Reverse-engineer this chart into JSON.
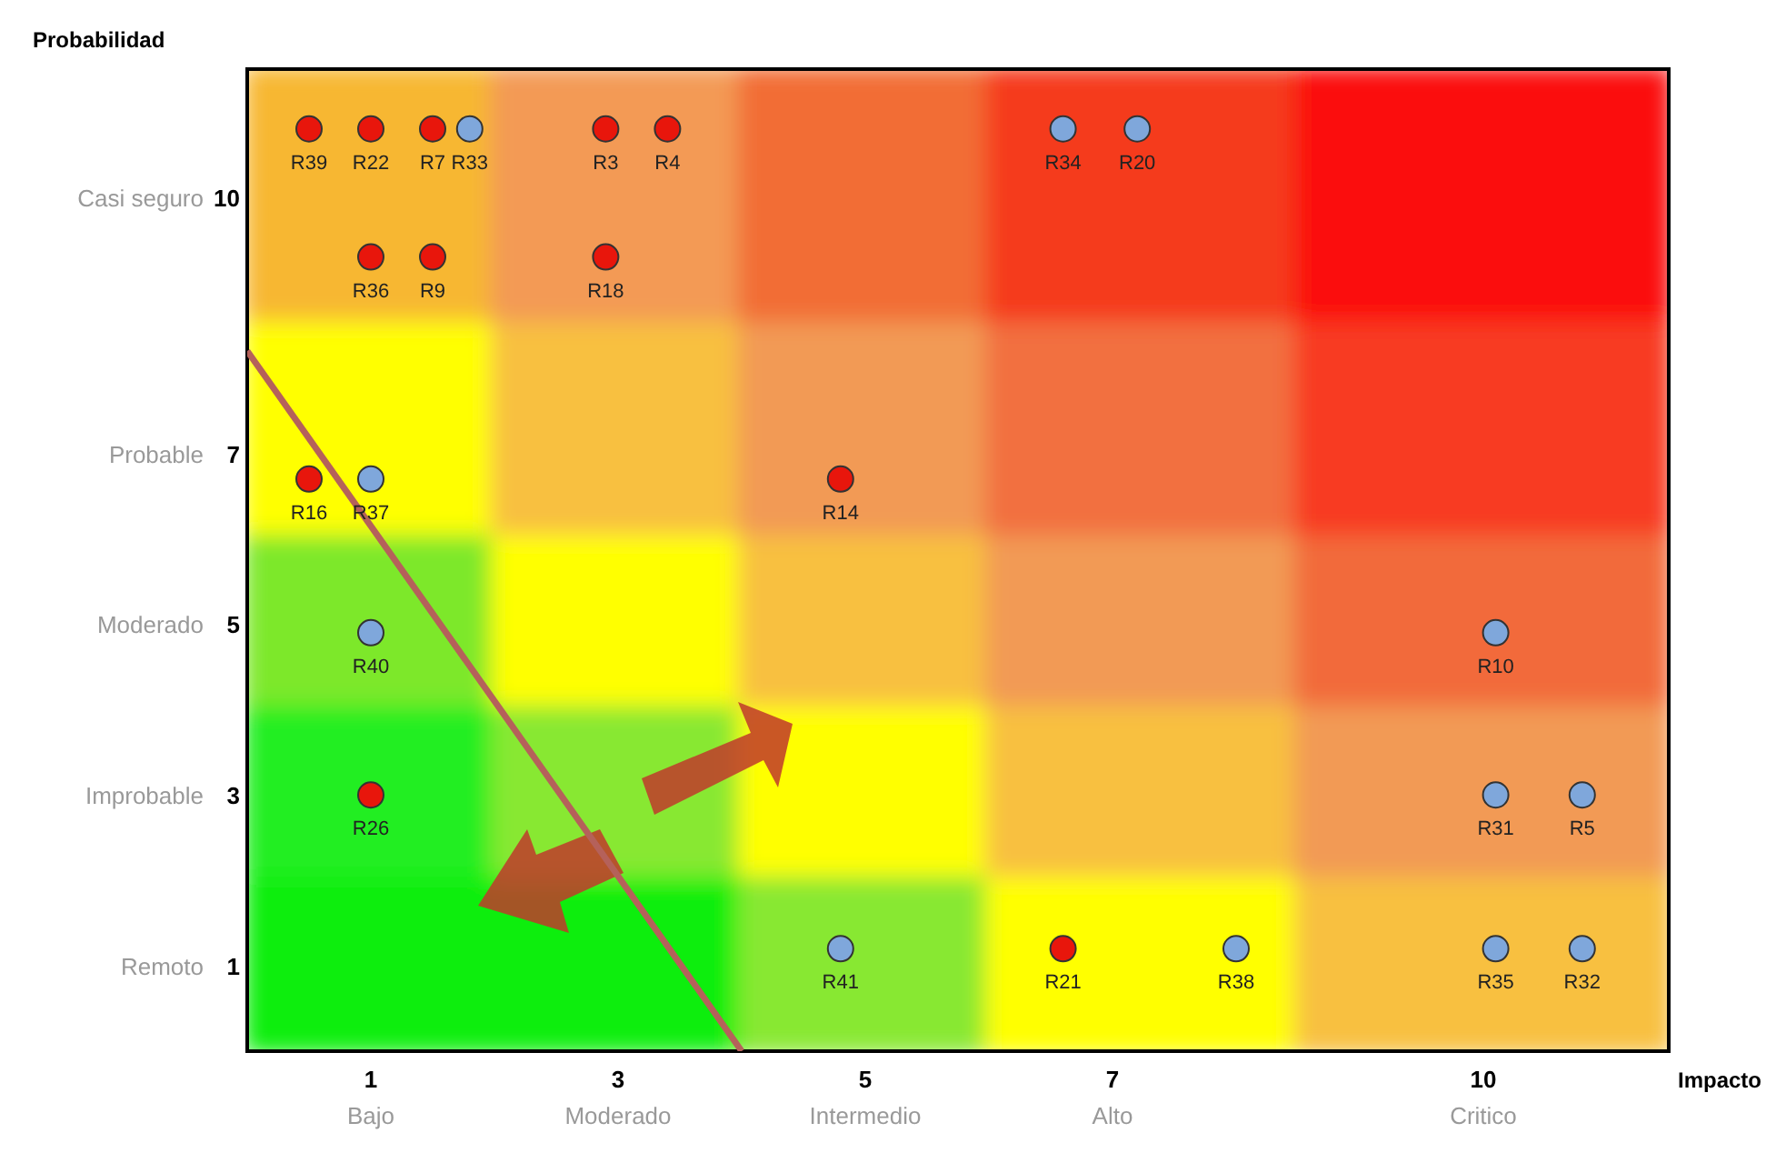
{
  "chart_data": {
    "type": "scatter",
    "xlabel": "Impacto",
    "ylabel": "Probabilidad",
    "xlim": [
      0,
      11.5
    ],
    "ylim": [
      0,
      11.5
    ],
    "xticks": [
      1,
      3,
      5,
      7,
      10
    ],
    "yticks": [
      1,
      3,
      5,
      7,
      10
    ],
    "annotations": [
      "Bajo",
      "Moderado",
      "Intermedio",
      "Alto",
      "Critico",
      "Remoto",
      "Improbable",
      "Moderado",
      "Probable",
      "Casi seguro"
    ],
    "grid": false,
    "series": [
      {
        "marker": "circle",
        "color": "#e8160c",
        "x": [
          0.5,
          1.0,
          1.5,
          2.9,
          3.4,
          1.0,
          1.5,
          2.9,
          0.5,
          4.8,
          1.0,
          6.6
        ],
        "values": [
          10.8,
          10.8,
          10.8,
          10.8,
          10.8,
          9.3,
          9.3,
          9.3,
          6.7,
          6.7,
          3.0,
          1.2
        ],
        "value_labels": [
          "R39",
          "R22",
          "R7",
          "R3",
          "R4",
          "R36",
          "R9",
          "R18",
          "R16",
          "R14",
          "R26",
          "R21"
        ]
      },
      {
        "marker": "circle",
        "color": "#7fa7db",
        "x": [
          1.8,
          6.6,
          7.2,
          1.0,
          1.0,
          10.1,
          10.1,
          10.8,
          4.8,
          8.0,
          10.1,
          10.8
        ],
        "values": [
          10.8,
          10.8,
          10.8,
          6.7,
          4.9,
          4.9,
          3.0,
          3.0,
          1.2,
          1.2,
          1.2,
          1.2
        ],
        "value_labels": [
          "R33",
          "R34",
          "R20",
          "R37",
          "R40",
          "R10",
          "R31",
          "R5",
          "R41",
          "R38",
          "R35",
          "R32"
        ]
      },
      {
        "type": "line",
        "color": "#b5615a",
        "x": [
          0,
          4.0
        ],
        "values": [
          8.2,
          0
        ],
        "line_style": "solid"
      }
    ]
  }
}
